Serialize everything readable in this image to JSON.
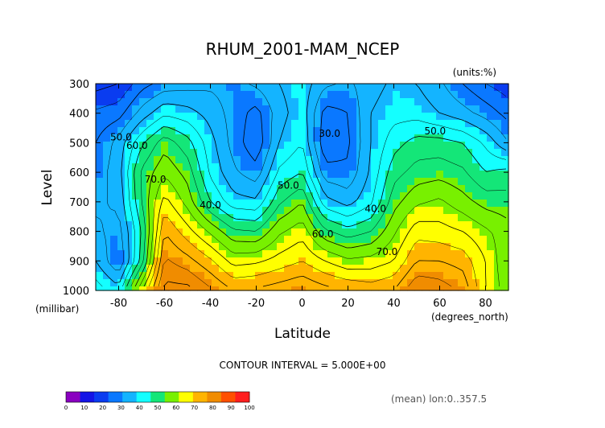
{
  "chart_data": {
    "type": "heatmap",
    "title": "RHUM_2001-MAM_NCEP",
    "units_label": "(units:%)",
    "xlabel": "Latitude",
    "x_unit_label": "(degrees_north)",
    "ylabel": "Level",
    "y_unit_label": "(millibar)",
    "xlim": [
      -90,
      90
    ],
    "ylim": [
      1000,
      300
    ],
    "x_ticks": [
      -80,
      -60,
      -40,
      -20,
      0,
      20,
      40,
      60,
      80
    ],
    "y_ticks": [
      300,
      400,
      500,
      600,
      700,
      800,
      900,
      1000
    ],
    "contour_interval_text": "CONTOUR INTERVAL = 5.000E+00",
    "footer_note": "(mean) lon:0..357.5",
    "colorbar": {
      "levels": [
        0,
        10,
        20,
        30,
        40,
        50,
        60,
        70,
        80,
        90,
        100
      ],
      "colors": [
        "#8a00c0",
        "#1414e6",
        "#0a3cf0",
        "#0a78ff",
        "#14b4ff",
        "#14ffff",
        "#14e678",
        "#78f000",
        "#ffff00",
        "#ffb400",
        "#f08c00",
        "#ff5000",
        "#ff1e1e"
      ]
    },
    "contour_labels": [
      {
        "text": "50.0",
        "x": -79,
        "y": 492
      },
      {
        "text": "60.0",
        "x": -72,
        "y": 520
      },
      {
        "text": "70.0",
        "x": -64,
        "y": 635
      },
      {
        "text": "40.0",
        "x": -40,
        "y": 722
      },
      {
        "text": "50.0",
        "x": -6,
        "y": 655
      },
      {
        "text": "30.0",
        "x": 12,
        "y": 480
      },
      {
        "text": "40.0",
        "x": 32,
        "y": 735
      },
      {
        "text": "60.0",
        "x": 9,
        "y": 820
      },
      {
        "text": "70.0",
        "x": 37,
        "y": 880
      },
      {
        "text": "50.0",
        "x": 58,
        "y": 472
      }
    ],
    "profiles": [
      {
        "x": -90,
        "v": {
          "300": 18,
          "400": 26,
          "500": 30,
          "600": 32,
          "700": 34,
          "800": 36,
          "900": 40,
          "1000": 48
        }
      },
      {
        "x": -80,
        "v": {
          "300": 20,
          "400": 28,
          "500": 37,
          "600": 38,
          "700": 36,
          "800": 33,
          "900": 30,
          "1000": 42
        }
      },
      {
        "x": -70,
        "v": {
          "300": 28,
          "400": 37,
          "500": 49,
          "600": 56,
          "700": 55,
          "800": 50,
          "900": 52,
          "1000": 70
        }
      },
      {
        "x": -60,
        "v": {
          "300": 32,
          "400": 44,
          "500": 58,
          "600": 64,
          "700": 72,
          "800": 80,
          "900": 86,
          "1000": 92
        }
      },
      {
        "x": -50,
        "v": {
          "300": 33,
          "400": 42,
          "500": 52,
          "600": 58,
          "700": 63,
          "800": 72,
          "900": 82,
          "1000": 92
        }
      },
      {
        "x": -40,
        "v": {
          "300": 34,
          "400": 38,
          "500": 42,
          "600": 44,
          "700": 50,
          "800": 64,
          "900": 76,
          "1000": 86
        }
      },
      {
        "x": -30,
        "v": {
          "300": 33,
          "400": 33,
          "500": 33,
          "600": 36,
          "700": 42,
          "800": 56,
          "900": 68,
          "1000": 80
        }
      },
      {
        "x": -20,
        "v": {
          "300": 36,
          "400": 28,
          "500": 26,
          "600": 32,
          "700": 41,
          "800": 55,
          "900": 69,
          "1000": 81
        }
      },
      {
        "x": -10,
        "v": {
          "300": 40,
          "400": 38,
          "500": 40,
          "600": 46,
          "700": 54,
          "800": 64,
          "900": 72,
          "1000": 83
        }
      },
      {
        "x": 0,
        "v": {
          "300": 43,
          "400": 43,
          "500": 45,
          "600": 50,
          "700": 60,
          "800": 68,
          "900": 75,
          "1000": 85
        }
      },
      {
        "x": 10,
        "v": {
          "300": 36,
          "400": 28,
          "500": 26,
          "600": 32,
          "700": 42,
          "800": 56,
          "900": 70,
          "1000": 82
        }
      },
      {
        "x": 20,
        "v": {
          "300": 34,
          "400": 30,
          "500": 29,
          "600": 31,
          "700": 38,
          "800": 52,
          "900": 66,
          "1000": 80
        }
      },
      {
        "x": 30,
        "v": {
          "300": 38,
          "400": 40,
          "500": 40,
          "600": 41,
          "700": 44,
          "800": 55,
          "900": 67,
          "1000": 78
        }
      },
      {
        "x": 40,
        "v": {
          "300": 41,
          "400": 43,
          "500": 48,
          "600": 53,
          "700": 58,
          "800": 64,
          "900": 70,
          "1000": 80
        }
      },
      {
        "x": 50,
        "v": {
          "300": 40,
          "400": 43,
          "500": 52,
          "600": 57,
          "700": 64,
          "800": 73,
          "900": 80,
          "1000": 90
        }
      },
      {
        "x": 60,
        "v": {
          "300": 36,
          "400": 40,
          "500": 52,
          "600": 58,
          "700": 66,
          "800": 72,
          "900": 80,
          "1000": 88
        }
      },
      {
        "x": 70,
        "v": {
          "300": 30,
          "400": 37,
          "500": 50,
          "600": 56,
          "700": 62,
          "800": 70,
          "900": 78,
          "1000": 84
        }
      },
      {
        "x": 80,
        "v": {
          "300": 25,
          "400": 33,
          "500": 44,
          "600": 50,
          "700": 58,
          "800": 66,
          "900": 70,
          "1000": 70
        }
      },
      {
        "x": 90,
        "v": {
          "300": 22,
          "400": 28,
          "500": 35,
          "600": 52,
          "700": 57,
          "800": 62,
          "900": 60,
          "1000": 62
        }
      }
    ]
  }
}
